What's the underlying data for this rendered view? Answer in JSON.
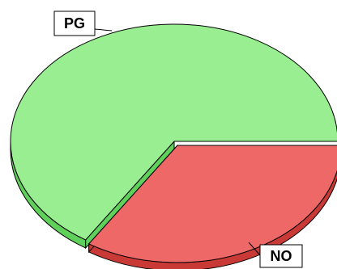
{
  "chart_data": {
    "type": "pie",
    "style": "3d-exploded",
    "title": "",
    "labels": [
      "PG",
      "NO"
    ],
    "values": [
      65.9,
      34.1
    ],
    "colors": {
      "PG": {
        "top": "#98ee90",
        "side": "#5fd05a"
      },
      "NO": {
        "top": "#ee6868",
        "side": "#c93a36"
      }
    }
  }
}
